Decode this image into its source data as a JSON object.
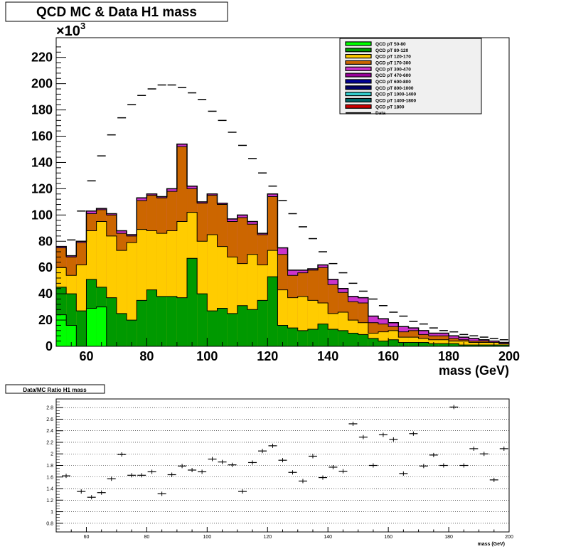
{
  "chart_data": [
    {
      "type": "bar",
      "subtype": "stacked-histogram-with-data-markers",
      "title": "QCD MC & Data H1 mass",
      "xlabel": "mass (GeV)",
      "ylabel": "",
      "y_multiplier_label": "×10",
      "y_multiplier_exponent": "3",
      "xlim": [
        50,
        200
      ],
      "ylim": [
        0,
        235
      ],
      "x_ticks": [
        "60",
        "80",
        "100",
        "120",
        "140",
        "160",
        "180",
        "200"
      ],
      "y_ticks": [
        "0",
        "20",
        "40",
        "60",
        "80",
        "100",
        "120",
        "140",
        "160",
        "180",
        "200",
        "220"
      ],
      "legend_position": "top-right",
      "legend": [
        {
          "name": "QCD pT 50-80",
          "color": "#00ff00"
        },
        {
          "name": "QCD pT 80-120",
          "color": "#009900"
        },
        {
          "name": "QCD pT 120-170",
          "color": "#ffcc00"
        },
        {
          "name": "QCD pT 170-300",
          "color": "#cc6600"
        },
        {
          "name": "QCD pT 300-470",
          "color": "#cc33cc"
        },
        {
          "name": "QCD pT 470-600",
          "color": "#990099"
        },
        {
          "name": "QCD pT 600-800",
          "color": "#000099"
        },
        {
          "name": "QCD pT 800-1000",
          "color": "#000066"
        },
        {
          "name": "QCD pT 1000-1400",
          "color": "#33cccc"
        },
        {
          "name": "QCD pT 1400-1800",
          "color": "#006666"
        },
        {
          "name": "QCD pT 1800",
          "color": "#cc0000"
        },
        {
          "name": "Data",
          "color": "#000000"
        }
      ],
      "bin_edges_start": 50,
      "bin_width": 3.3333,
      "stack": {
        "pt50_80": [
          24,
          16,
          0,
          29,
          30,
          0,
          0,
          0,
          0,
          0,
          0,
          0,
          0,
          0,
          0,
          0,
          0,
          0,
          0,
          0,
          0,
          0,
          0,
          0,
          0,
          0,
          0,
          0,
          0,
          0,
          0,
          0,
          0,
          0,
          0,
          0,
          0,
          0,
          0,
          0,
          0,
          0,
          0,
          0,
          0
        ],
        "pt80_120": [
          45,
          40,
          27,
          51,
          45,
          37,
          25,
          20,
          35,
          43,
          38,
          38,
          37,
          67,
          40,
          27,
          29,
          25,
          31,
          28,
          35,
          53,
          16,
          14,
          12,
          13,
          17,
          13,
          12,
          10,
          9,
          6,
          4,
          5,
          3,
          3,
          3,
          2,
          2,
          2,
          1,
          1,
          1,
          1,
          1
        ],
        "pt120_170": [
          60,
          54,
          62,
          88,
          95,
          84,
          73,
          79,
          89,
          88,
          86,
          88,
          95,
          102,
          80,
          85,
          76,
          68,
          63,
          70,
          62,
          73,
          43,
          37,
          38,
          35,
          33,
          25,
          26,
          20,
          18,
          10,
          11,
          12,
          7,
          7,
          6,
          5,
          5,
          4,
          4,
          3,
          3,
          3,
          2
        ],
        "pt170_300": [
          75,
          68,
          79,
          101,
          104,
          100,
          86,
          84,
          111,
          115,
          113,
          118,
          152,
          120,
          109,
          115,
          108,
          95,
          98,
          93,
          85,
          114,
          70,
          54,
          56,
          58,
          60,
          47,
          41,
          34,
          33,
          18,
          17,
          15,
          11,
          12,
          9,
          8,
          8,
          6,
          5,
          4,
          4,
          3,
          2
        ],
        "pt300_plus": [
          76,
          69,
          80,
          103,
          105,
          101,
          88,
          85,
          113,
          116,
          114,
          120,
          154,
          122,
          110,
          116,
          109,
          97,
          100,
          95,
          86,
          116,
          75,
          58,
          58,
          59,
          62,
          51,
          44,
          38,
          37,
          23,
          21,
          18,
          15,
          14,
          12,
          10,
          10,
          8,
          7,
          6,
          5,
          4,
          3
        ]
      },
      "data_points": [
        {
          "x": 55,
          "y": 81
        },
        {
          "x": 58.3,
          "y": 103
        },
        {
          "x": 61.7,
          "y": 126
        },
        {
          "x": 65,
          "y": 145
        },
        {
          "x": 68.3,
          "y": 161
        },
        {
          "x": 71.7,
          "y": 174
        },
        {
          "x": 75,
          "y": 184
        },
        {
          "x": 78.3,
          "y": 191
        },
        {
          "x": 81.7,
          "y": 196
        },
        {
          "x": 85,
          "y": 199
        },
        {
          "x": 88.3,
          "y": 199
        },
        {
          "x": 91.7,
          "y": 197
        },
        {
          "x": 95,
          "y": 193
        },
        {
          "x": 98.3,
          "y": 188
        },
        {
          "x": 101.7,
          "y": 179
        },
        {
          "x": 105,
          "y": 172
        },
        {
          "x": 108.3,
          "y": 163
        },
        {
          "x": 111.7,
          "y": 153
        },
        {
          "x": 115,
          "y": 143
        },
        {
          "x": 118.3,
          "y": 132
        },
        {
          "x": 121.7,
          "y": 122
        },
        {
          "x": 125,
          "y": 111
        },
        {
          "x": 128.3,
          "y": 101
        },
        {
          "x": 131.7,
          "y": 91
        },
        {
          "x": 135,
          "y": 82
        },
        {
          "x": 138.3,
          "y": 72
        },
        {
          "x": 141.7,
          "y": 63
        },
        {
          "x": 145,
          "y": 56
        },
        {
          "x": 148.3,
          "y": 48
        },
        {
          "x": 151.7,
          "y": 42
        },
        {
          "x": 155,
          "y": 36
        },
        {
          "x": 158.3,
          "y": 31
        },
        {
          "x": 161.7,
          "y": 26
        },
        {
          "x": 165,
          "y": 23
        },
        {
          "x": 168.3,
          "y": 19
        },
        {
          "x": 171.7,
          "y": 17
        },
        {
          "x": 175,
          "y": 14
        },
        {
          "x": 178.3,
          "y": 12
        },
        {
          "x": 181.7,
          "y": 11
        },
        {
          "x": 185,
          "y": 9
        },
        {
          "x": 188.3,
          "y": 8
        },
        {
          "x": 191.7,
          "y": 7
        },
        {
          "x": 195,
          "y": 6
        },
        {
          "x": 198.3,
          "y": 5
        }
      ]
    },
    {
      "type": "scatter",
      "title": "Data/MC Ratio H1 mass",
      "xlabel": "mass (GeV)",
      "ylabel": "",
      "xlim": [
        50,
        200
      ],
      "ylim": [
        0.65,
        2.95
      ],
      "grid": true,
      "x_ticks": [
        "60",
        "80",
        "100",
        "120",
        "140",
        "160",
        "180",
        "200"
      ],
      "y_ticks": [
        "0.8",
        "1",
        "1.2",
        "1.4",
        "1.6",
        "1.8",
        "2",
        "2.2",
        "2.4",
        "2.6",
        "2.8"
      ],
      "points": [
        {
          "x": 53.3,
          "y": 1.62
        },
        {
          "x": 58.3,
          "y": 1.35
        },
        {
          "x": 61.7,
          "y": 1.25
        },
        {
          "x": 65,
          "y": 1.33
        },
        {
          "x": 68.3,
          "y": 1.57
        },
        {
          "x": 71.7,
          "y": 1.99
        },
        {
          "x": 75,
          "y": 1.63
        },
        {
          "x": 78.3,
          "y": 1.63
        },
        {
          "x": 81.7,
          "y": 1.69
        },
        {
          "x": 85,
          "y": 1.31
        },
        {
          "x": 88.3,
          "y": 1.64
        },
        {
          "x": 91.7,
          "y": 1.79
        },
        {
          "x": 95,
          "y": 1.72
        },
        {
          "x": 98.3,
          "y": 1.69
        },
        {
          "x": 101.7,
          "y": 1.91
        },
        {
          "x": 105,
          "y": 1.86
        },
        {
          "x": 108.3,
          "y": 1.81
        },
        {
          "x": 111.7,
          "y": 1.35
        },
        {
          "x": 115,
          "y": 1.85
        },
        {
          "x": 118.3,
          "y": 2.05
        },
        {
          "x": 121.7,
          "y": 2.14
        },
        {
          "x": 125,
          "y": 1.89
        },
        {
          "x": 128.3,
          "y": 1.68
        },
        {
          "x": 131.7,
          "y": 1.53
        },
        {
          "x": 135,
          "y": 1.96
        },
        {
          "x": 138.3,
          "y": 1.59
        },
        {
          "x": 141.7,
          "y": 1.77
        },
        {
          "x": 145,
          "y": 1.7
        },
        {
          "x": 148.3,
          "y": 2.52
        },
        {
          "x": 151.7,
          "y": 2.29
        },
        {
          "x": 155,
          "y": 1.8
        },
        {
          "x": 158.3,
          "y": 2.33
        },
        {
          "x": 161.7,
          "y": 2.25
        },
        {
          "x": 165,
          "y": 1.66
        },
        {
          "x": 168.3,
          "y": 2.35
        },
        {
          "x": 171.7,
          "y": 1.79
        },
        {
          "x": 175,
          "y": 1.98
        },
        {
          "x": 178.3,
          "y": 1.8
        },
        {
          "x": 181.7,
          "y": 2.81
        },
        {
          "x": 185,
          "y": 1.8
        },
        {
          "x": 188.3,
          "y": 2.09
        },
        {
          "x": 191.7,
          "y": 2.0
        },
        {
          "x": 195,
          "y": 1.55
        },
        {
          "x": 198.3,
          "y": 2.09
        }
      ]
    }
  ]
}
